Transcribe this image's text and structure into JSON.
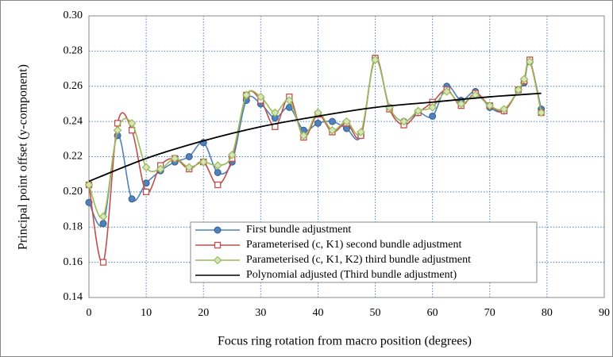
{
  "chart_data": {
    "type": "line",
    "xlabel": "Focus ring rotation from macro position (degrees)",
    "ylabel": "Principal point offset (y-component)",
    "xlim": [
      0,
      90
    ],
    "xticks": [
      0,
      10,
      20,
      30,
      40,
      50,
      60,
      70,
      80,
      90
    ],
    "ylim": [
      0.14,
      0.3
    ],
    "yticks": [
      {
        "value": 0.14,
        "label": "0.14"
      },
      {
        "value": 0.16,
        "label": "0.16"
      },
      {
        "value": 0.18,
        "label": "0.18"
      },
      {
        "value": 0.2,
        "label": "0.20"
      },
      {
        "value": 0.22,
        "label": "0.22"
      },
      {
        "value": 0.24,
        "label": "0.24"
      },
      {
        "value": 0.26,
        "label": "0.26"
      },
      {
        "value": 0.28,
        "label": "0.28"
      },
      {
        "value": 0.3,
        "label": "0.30"
      }
    ],
    "grid": true,
    "series": [
      {
        "name": "First bundle adjustment",
        "color": "#4f81bd",
        "marker": "circle",
        "x": [
          0,
          2.5,
          5,
          7.5,
          10,
          12.5,
          15,
          17.5,
          20,
          22.5,
          25,
          27.5,
          30,
          32.5,
          35,
          37.5,
          40,
          42.5,
          45,
          47.5,
          50,
          52.5,
          55,
          57.5,
          60,
          62.5,
          65,
          67.5,
          70,
          72.5,
          75,
          76,
          77,
          79
        ],
        "values": [
          0.194,
          0.182,
          0.232,
          0.196,
          0.205,
          0.212,
          0.217,
          0.22,
          0.228,
          0.211,
          0.217,
          0.252,
          0.25,
          0.242,
          0.248,
          0.235,
          0.239,
          0.24,
          0.236,
          0.232,
          0.276,
          0.248,
          0.24,
          0.245,
          0.243,
          0.26,
          0.252,
          0.257,
          0.248,
          0.246,
          0.258,
          0.262,
          0.274,
          0.247
        ]
      },
      {
        "name": "Parameterised (c, K1) second bundle adjustment",
        "color": "#c0504d",
        "marker": "square",
        "x": [
          0,
          2.5,
          5,
          7.5,
          10,
          12.5,
          15,
          17.5,
          20,
          22.5,
          25,
          27.5,
          30,
          32.5,
          35,
          37.5,
          40,
          42.5,
          45,
          47.5,
          50,
          52.5,
          55,
          57.5,
          60,
          62.5,
          65,
          67.5,
          70,
          72.5,
          75,
          76,
          77,
          79
        ],
        "values": [
          0.204,
          0.16,
          0.239,
          0.235,
          0.2,
          0.215,
          0.219,
          0.213,
          0.217,
          0.204,
          0.219,
          0.255,
          0.252,
          0.237,
          0.254,
          0.231,
          0.244,
          0.234,
          0.239,
          0.232,
          0.276,
          0.247,
          0.238,
          0.245,
          0.251,
          0.258,
          0.249,
          0.256,
          0.249,
          0.246,
          0.258,
          0.263,
          0.275,
          0.245
        ]
      },
      {
        "name": "Parameterised (c, K1, K2) third bundle adjustment",
        "color": "#9bbb59",
        "marker": "diamond",
        "x": [
          0,
          2.5,
          5,
          7.5,
          10,
          12.5,
          15,
          17.5,
          20,
          22.5,
          25,
          27.5,
          30,
          32.5,
          35,
          37.5,
          40,
          42.5,
          45,
          47.5,
          50,
          52.5,
          55,
          57.5,
          60,
          62.5,
          65,
          67.5,
          70,
          72.5,
          75,
          76,
          77,
          79
        ],
        "values": [
          0.204,
          0.186,
          0.235,
          0.239,
          0.214,
          0.213,
          0.219,
          0.214,
          0.217,
          0.215,
          0.221,
          0.255,
          0.254,
          0.245,
          0.252,
          0.232,
          0.245,
          0.235,
          0.24,
          0.234,
          0.275,
          0.248,
          0.24,
          0.246,
          0.248,
          0.257,
          0.25,
          0.255,
          0.249,
          0.247,
          0.258,
          0.264,
          0.274,
          0.245
        ]
      },
      {
        "name": "Polynomial adjusted (Third bundle adjustment)",
        "color": "#000000",
        "marker": "none",
        "x": [
          0,
          10,
          20,
          30,
          40,
          50,
          60,
          70,
          79
        ],
        "values": [
          0.206,
          0.219,
          0.229,
          0.237,
          0.243,
          0.248,
          0.251,
          0.254,
          0.256
        ]
      }
    ]
  }
}
